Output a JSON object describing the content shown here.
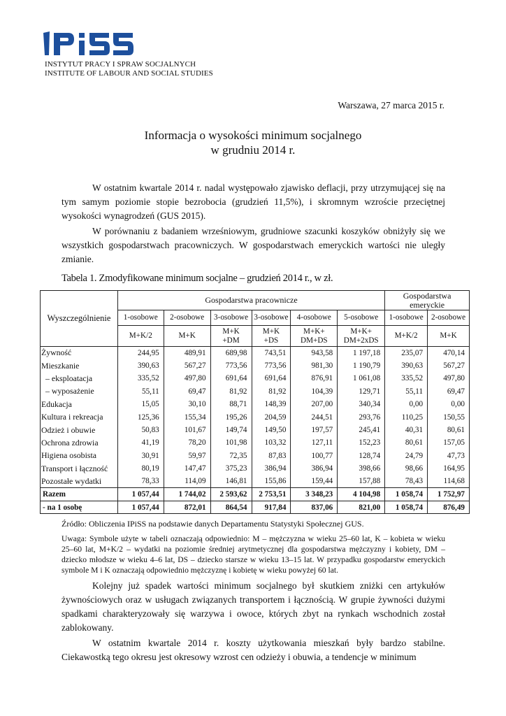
{
  "header": {
    "logo_text": "IPiSS",
    "institute_pl": "INSTYTUT PRACY I SPRAW SOCJALNYCH",
    "institute_en": "INSTITUTE OF LABOUR AND SOCIAL STUDIES",
    "brand_color": "#1d4f9c"
  },
  "date": "Warszawa, 27 marca 2015 r.",
  "title_line1": "Informacja o wysokości minimum socjalnego",
  "title_line2": "w grudniu 2014 r.",
  "paragraphs": [
    "W ostatnim kwartale 2014 r. nadal występowało zjawisko deflacji, przy utrzymującej się na tym samym poziomie stopie bezrobocia (grudzień 11,5%), i skromnym wzroście przeciętnej wysokości wynagrodzeń (GUS 2015).",
    "W porównaniu z badaniem wrześniowym, grudniowe szacunki koszyków obniżyły się we wszystkich gospodarstwach pracowniczych. W gospodarstwach emeryckich wartości nie uległy zmianie."
  ],
  "table": {
    "caption": "Tabela 1. Zmodyfikowane minimum socjalne – grudzień 2014 r., w zł.",
    "row_header": "Wyszczególnienie",
    "group1": "Gospodarstwa pracownicze",
    "group2": "Gospodarstwa emeryckie",
    "sizes": [
      "1-osobowe",
      "2-osobowe",
      "3-osobowe",
      "3-osobowe",
      "4-osobowe",
      "5-osobowe",
      "1-osobowe",
      "2-osobowe"
    ],
    "compositions": [
      [
        "M+K/2"
      ],
      [
        "M+K"
      ],
      [
        "M+K",
        "+DM"
      ],
      [
        "M+K",
        "+DS"
      ],
      [
        "M+K+",
        "DM+DS"
      ],
      [
        "M+K+",
        "DM+2xDS"
      ],
      [
        "M+K/2"
      ],
      [
        "M+K"
      ]
    ],
    "rows": [
      {
        "label": "Żywność",
        "values": [
          "244,95",
          "489,91",
          "689,98",
          "743,51",
          "943,58",
          "1 197,18",
          "235,07",
          "470,14"
        ]
      },
      {
        "label": "Mieszkanie",
        "values": [
          "390,63",
          "567,27",
          "773,56",
          "773,56",
          "981,30",
          "1 190,79",
          "390,63",
          "567,27"
        ]
      },
      {
        "label": "  – eksploatacja",
        "values": [
          "335,52",
          "497,80",
          "691,64",
          "691,64",
          "876,91",
          "1 061,08",
          "335,52",
          "497,80"
        ]
      },
      {
        "label": "  – wyposażenie",
        "values": [
          "55,11",
          "69,47",
          "81,92",
          "81,92",
          "104,39",
          "129,71",
          "55,11",
          "69,47"
        ]
      },
      {
        "label": "Edukacja",
        "values": [
          "15,05",
          "30,10",
          "88,71",
          "148,39",
          "207,00",
          "340,34",
          "0,00",
          "0,00"
        ]
      },
      {
        "label": "Kultura i rekreacja",
        "values": [
          "125,36",
          "155,34",
          "195,26",
          "204,59",
          "244,51",
          "293,76",
          "110,25",
          "150,55"
        ]
      },
      {
        "label": "Odzież i obuwie",
        "values": [
          "50,83",
          "101,67",
          "149,74",
          "149,50",
          "197,57",
          "245,41",
          "40,31",
          "80,61"
        ]
      },
      {
        "label": "Ochrona zdrowia",
        "values": [
          "41,19",
          "78,20",
          "101,98",
          "103,32",
          "127,11",
          "152,23",
          "80,61",
          "157,05"
        ]
      },
      {
        "label": "Higiena osobista",
        "values": [
          "30,91",
          "59,97",
          "72,35",
          "87,83",
          "100,77",
          "128,74",
          "24,79",
          "47,73"
        ]
      },
      {
        "label": "Transport i łączność",
        "values": [
          "80,19",
          "147,47",
          "375,23",
          "386,94",
          "386,94",
          "398,66",
          "98,66",
          "164,95"
        ]
      },
      {
        "label": "Pozostałe wydatki",
        "values": [
          "78,33",
          "114,09",
          "146,81",
          "155,86",
          "159,44",
          "157,88",
          "78,43",
          "114,68"
        ]
      }
    ],
    "totals": [
      {
        "label": "Razem",
        "values": [
          "1 057,44",
          "1 744,02",
          "2 593,62",
          "2 753,51",
          "3 348,23",
          "4 104,98",
          "1 058,74",
          "1 752,97"
        ]
      },
      {
        "label": " - na 1 osobę",
        "values": [
          "1 057,44",
          "872,01",
          "864,54",
          "917,84",
          "837,06",
          "821,00",
          "1 058,74",
          "876,49"
        ]
      }
    ]
  },
  "source": "Źródło: Obliczenia IPiSS na podstawie danych Departamentu Statystyki Społecznej GUS.",
  "note": "Uwaga: Symbole użyte w tabeli oznaczają odpowiednio: M – mężczyzna w wieku 25–60 lat, K – kobieta w wieku 25–60 lat, M+K/2 – wydatki na poziomie średniej arytmetycznej dla gospodarstwa mężczyzny i kobiety, DM – dziecko młodsze w wieku 4–6 lat, DS – dziecko starsze w wieku 13–15 lat. W przypadku gospodarstw emeryckich symbole M i K oznaczają odpowiednio mężczyznę i kobietę w wieku powyżej 60 lat.",
  "paragraphs2": [
    "Kolejny już spadek wartości minimum socjalnego był skutkiem zniżki cen artykułów żywnościowych oraz w usługach związanych transportem i łącznością. W grupie żywności dużymi spadkami charakteryzowały się warzywa i owoce, których zbyt na rynkach wschodnich został zablokowany.",
    "W ostatnim kwartale 2014 r. koszty użytkowania mieszkań były bardzo stabilne. Ciekawostką tego okresu jest okresowy wzrost cen odzieży i obuwia, a tendencje w minimum"
  ]
}
